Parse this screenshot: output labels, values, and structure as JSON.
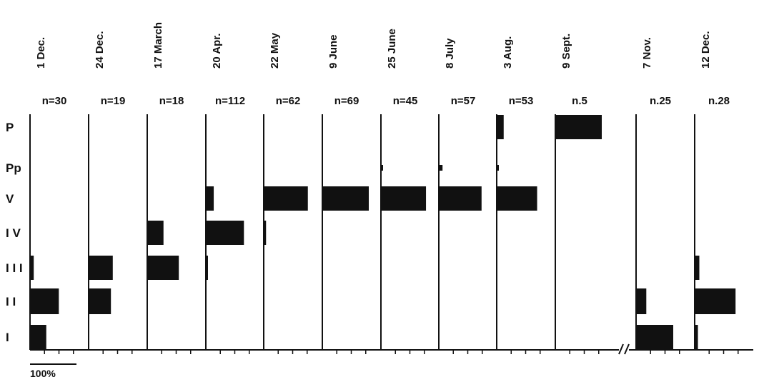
{
  "chart_data": {
    "type": "bar",
    "orientation": "horizontal",
    "stages": [
      "P",
      "Pp",
      "V",
      "IV",
      "III",
      "II",
      "I"
    ],
    "stage_labels": [
      "P",
      "Pp",
      "V",
      "I V",
      "I I I",
      "I I",
      "I"
    ],
    "samples": [
      {
        "date": "1 Dec.",
        "n": "n=30",
        "values": [
          0,
          0,
          0,
          0,
          8,
          62,
          35
        ]
      },
      {
        "date": "24 Dec.",
        "n": "n=19",
        "values": [
          0,
          0,
          0,
          0,
          52,
          48,
          0
        ]
      },
      {
        "date": "17 March",
        "n": "n=18",
        "values": [
          0,
          0,
          0,
          35,
          68,
          0,
          0
        ]
      },
      {
        "date": "20 Apr.",
        "n": "n=112",
        "values": [
          0,
          0,
          17,
          82,
          4,
          0,
          0
        ]
      },
      {
        "date": "22 May",
        "n": "n=62",
        "values": [
          0,
          0,
          95,
          5,
          0,
          0,
          0
        ]
      },
      {
        "date": "9 June",
        "n": "n=69",
        "values": [
          0,
          0,
          100,
          0,
          0,
          0,
          0
        ]
      },
      {
        "date": "25 June",
        "n": "n=45",
        "values": [
          0,
          3,
          97,
          0,
          0,
          0,
          0
        ]
      },
      {
        "date": "8 July",
        "n": "n=57",
        "values": [
          0,
          8,
          92,
          0,
          0,
          0,
          0
        ]
      },
      {
        "date": "3 Aug.",
        "n": "n=53",
        "values": [
          15,
          4,
          87,
          0,
          0,
          0,
          0
        ]
      },
      {
        "date": "9 Sept.",
        "n": "n.5",
        "values": [
          100,
          0,
          0,
          0,
          0,
          0,
          0
        ]
      },
      {
        "date": "7 Nov.",
        "n": "n.25",
        "values": [
          0,
          0,
          0,
          0,
          0,
          22,
          80
        ]
      },
      {
        "date": "12 Dec.",
        "n": "n.28",
        "values": [
          0,
          0,
          0,
          0,
          10,
          88,
          7
        ]
      }
    ],
    "scale_label": "100%",
    "scale_value": 100,
    "axis_break_after": "9 Sept.",
    "bar_color": "#111111",
    "grid": false
  }
}
